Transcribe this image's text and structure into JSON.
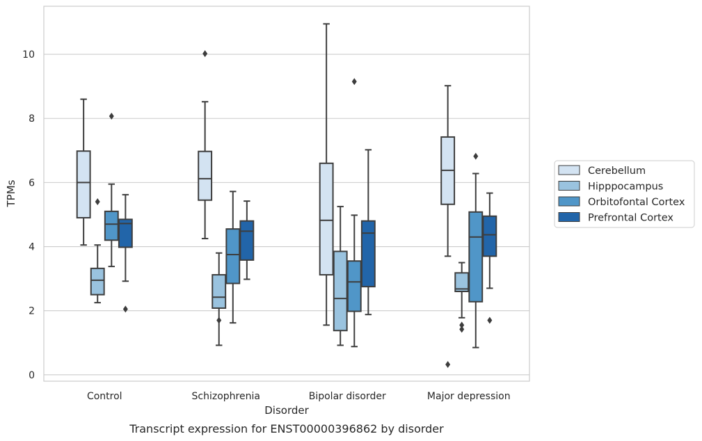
{
  "chart_data": {
    "type": "box",
    "xlabel": "Disorder",
    "ylabel": "TPMs",
    "caption": "Transcript expression for ENST00000396862 by disorder",
    "categories": [
      "Control",
      "Schizophrenia",
      "Bipolar disorder",
      "Major depression"
    ],
    "ylim": [
      -0.2,
      11.5
    ],
    "yticks": [
      0,
      2,
      4,
      6,
      8,
      10
    ],
    "grid": "horizontal",
    "legend_placement": "right",
    "series": [
      {
        "name": "Cerebellum",
        "color": "#d3e3f2",
        "boxes": [
          {
            "whisker_low": 4.05,
            "q1": 4.9,
            "median": 6.0,
            "q3": 6.98,
            "whisker_high": 8.6,
            "outliers": []
          },
          {
            "whisker_low": 4.25,
            "q1": 5.45,
            "median": 6.12,
            "q3": 6.97,
            "whisker_high": 8.52,
            "outliers": [
              10.02
            ]
          },
          {
            "whisker_low": 1.55,
            "q1": 3.12,
            "median": 4.82,
            "q3": 6.6,
            "whisker_high": 10.95,
            "outliers": []
          },
          {
            "whisker_low": 3.7,
            "q1": 5.32,
            "median": 6.38,
            "q3": 7.42,
            "whisker_high": 9.02,
            "outliers": [
              0.32
            ]
          }
        ]
      },
      {
        "name": "Hipppocampus",
        "color": "#9ac3df",
        "boxes": [
          {
            "whisker_low": 2.25,
            "q1": 2.5,
            "median": 2.95,
            "q3": 3.32,
            "whisker_high": 4.05,
            "outliers": [
              5.4
            ]
          },
          {
            "whisker_low": 0.92,
            "q1": 2.08,
            "median": 2.42,
            "q3": 3.12,
            "whisker_high": 3.8,
            "outliers": [
              1.7
            ]
          },
          {
            "whisker_low": 0.92,
            "q1": 1.38,
            "median": 2.38,
            "q3": 3.85,
            "whisker_high": 5.25,
            "outliers": []
          },
          {
            "whisker_low": 1.78,
            "q1": 2.6,
            "median": 2.68,
            "q3": 3.18,
            "whisker_high": 3.5,
            "outliers": [
              1.42,
              1.55
            ]
          }
        ]
      },
      {
        "name": "Orbitofontal Cortex",
        "color": "#5096c8",
        "boxes": [
          {
            "whisker_low": 3.38,
            "q1": 4.2,
            "median": 4.7,
            "q3": 5.1,
            "whisker_high": 5.95,
            "outliers": [
              8.07
            ]
          },
          {
            "whisker_low": 1.62,
            "q1": 2.85,
            "median": 3.75,
            "q3": 4.55,
            "whisker_high": 5.72,
            "outliers": []
          },
          {
            "whisker_low": 0.88,
            "q1": 1.98,
            "median": 2.9,
            "q3": 3.55,
            "whisker_high": 4.98,
            "outliers": [
              9.15
            ]
          },
          {
            "whisker_low": 0.85,
            "q1": 2.28,
            "median": 4.3,
            "q3": 5.08,
            "whisker_high": 6.28,
            "outliers": [
              6.82
            ]
          }
        ]
      },
      {
        "name": "Prefrontal Cortex",
        "color": "#2265a9",
        "boxes": [
          {
            "whisker_low": 2.92,
            "q1": 3.98,
            "median": 4.72,
            "q3": 4.85,
            "whisker_high": 5.62,
            "outliers": [
              2.05
            ]
          },
          {
            "whisker_low": 2.98,
            "q1": 3.58,
            "median": 4.48,
            "q3": 4.8,
            "whisker_high": 5.42,
            "outliers": []
          },
          {
            "whisker_low": 1.88,
            "q1": 2.75,
            "median": 4.42,
            "q3": 4.8,
            "whisker_high": 7.02,
            "outliers": []
          },
          {
            "whisker_low": 2.7,
            "q1": 3.7,
            "median": 4.37,
            "q3": 4.95,
            "whisker_high": 5.67,
            "outliers": [
              1.7
            ]
          }
        ]
      }
    ]
  }
}
